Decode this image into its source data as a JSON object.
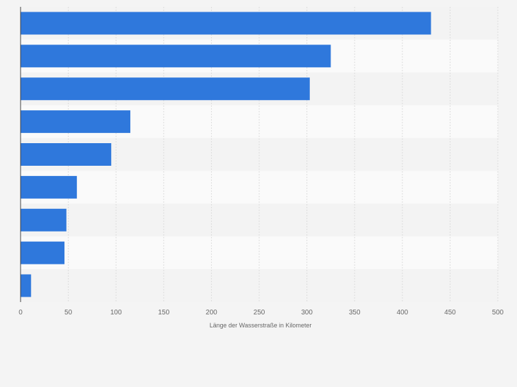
{
  "colors": {
    "page_background": "#f4f4f4",
    "band_light": "#fafafa",
    "band_dark": "#f3f3f3",
    "bar": "#2f78dc",
    "grid": "#dcdcdc",
    "axis": "#444444",
    "text": "#666666"
  },
  "chart_data": {
    "type": "bar",
    "orientation": "horizontal",
    "title": "",
    "xlabel": "Länge der Wasserstraße in Kilometer",
    "ylabel": "",
    "xlim": [
      0,
      500
    ],
    "xticks": [
      0,
      50,
      100,
      150,
      200,
      250,
      300,
      350,
      400,
      450,
      500
    ],
    "categories": [
      "",
      "",
      "",
      "",
      "",
      "",
      "",
      "",
      ""
    ],
    "values": [
      430,
      325,
      303,
      115,
      95,
      59,
      48,
      46,
      11
    ],
    "grid": true,
    "legend": "none"
  }
}
